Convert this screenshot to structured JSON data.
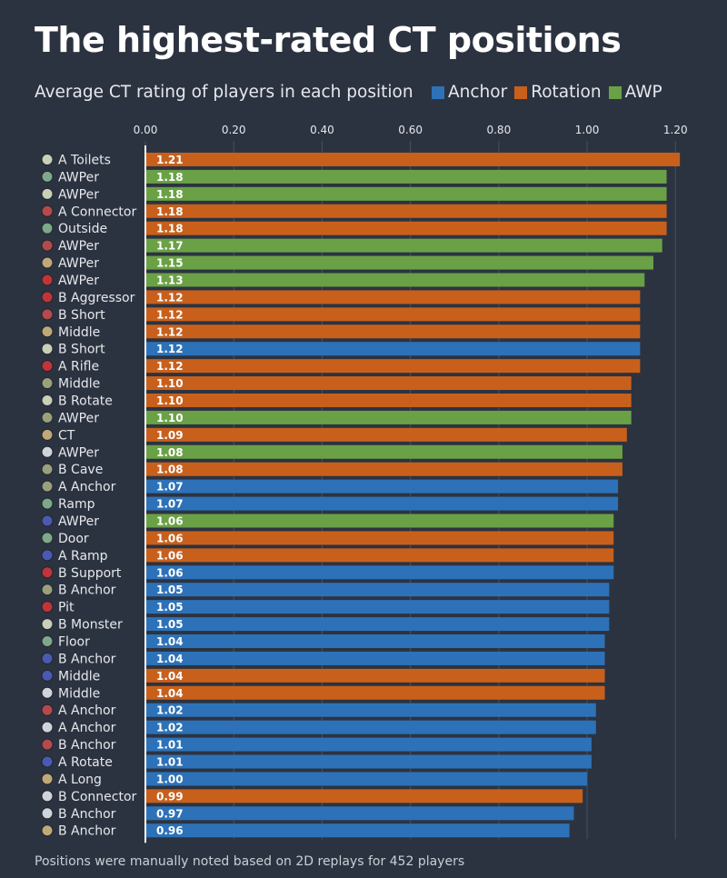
{
  "header": {
    "title": "The highest-rated CT positions",
    "subtitle": "Average CT rating of players in each position"
  },
  "legend": [
    {
      "name": "Anchor",
      "color": "#2d72b8"
    },
    {
      "name": "Rotation",
      "color": "#c8601c"
    },
    {
      "name": "AWP",
      "color": "#6aa146"
    }
  ],
  "footnote": "Positions were manually noted based on 2D replays for 452 players",
  "chart_data": {
    "type": "bar",
    "orientation": "horizontal",
    "xlim": [
      0,
      1.22
    ],
    "xticks": [
      "0.00",
      "0.20",
      "0.40",
      "0.60",
      "0.80",
      "1.00",
      "1.20"
    ],
    "xtick_values": [
      0,
      0.2,
      0.4,
      0.6,
      0.8,
      1.0,
      1.2
    ],
    "grid": true,
    "legend_position": "top-right",
    "rows": [
      {
        "label": "A Toilets",
        "value": 1.21,
        "text": "1.21",
        "series": "Rotation"
      },
      {
        "label": "AWPer",
        "value": 1.18,
        "text": "1.18",
        "series": "AWP"
      },
      {
        "label": "AWPer",
        "value": 1.18,
        "text": "1.18",
        "series": "AWP"
      },
      {
        "label": "A Connector",
        "value": 1.18,
        "text": "1.18",
        "series": "Rotation"
      },
      {
        "label": "Outside",
        "value": 1.18,
        "text": "1.18",
        "series": "Rotation"
      },
      {
        "label": "AWPer",
        "value": 1.17,
        "text": "1.17",
        "series": "AWP"
      },
      {
        "label": "AWPer",
        "value": 1.15,
        "text": "1.15",
        "series": "AWP"
      },
      {
        "label": "AWPer",
        "value": 1.13,
        "text": "1.13",
        "series": "AWP"
      },
      {
        "label": "B Aggressor",
        "value": 1.12,
        "text": "1.12",
        "series": "Rotation"
      },
      {
        "label": "B Short",
        "value": 1.12,
        "text": "1.12",
        "series": "Rotation"
      },
      {
        "label": "Middle",
        "value": 1.12,
        "text": "1.12",
        "series": "Rotation"
      },
      {
        "label": "B Short",
        "value": 1.12,
        "text": "1.12",
        "series": "Anchor"
      },
      {
        "label": "A Rifle",
        "value": 1.12,
        "text": "1.12",
        "series": "Rotation"
      },
      {
        "label": "Middle",
        "value": 1.1,
        "text": "1.10",
        "series": "Rotation"
      },
      {
        "label": "B Rotate",
        "value": 1.1,
        "text": "1.10",
        "series": "Rotation"
      },
      {
        "label": "AWPer",
        "value": 1.1,
        "text": "1.10",
        "series": "AWP"
      },
      {
        "label": "CT",
        "value": 1.09,
        "text": "1.09",
        "series": "Rotation"
      },
      {
        "label": "AWPer",
        "value": 1.08,
        "text": "1.08",
        "series": "AWP"
      },
      {
        "label": "B Cave",
        "value": 1.08,
        "text": "1.08",
        "series": "Rotation"
      },
      {
        "label": "A Anchor",
        "value": 1.07,
        "text": "1.07",
        "series": "Anchor"
      },
      {
        "label": "Ramp",
        "value": 1.07,
        "text": "1.07",
        "series": "Anchor"
      },
      {
        "label": "AWPer",
        "value": 1.06,
        "text": "1.06",
        "series": "AWP"
      },
      {
        "label": "Door",
        "value": 1.06,
        "text": "1.06",
        "series": "Rotation"
      },
      {
        "label": "A Ramp",
        "value": 1.06,
        "text": "1.06",
        "series": "Rotation"
      },
      {
        "label": "B Support",
        "value": 1.06,
        "text": "1.06",
        "series": "Anchor"
      },
      {
        "label": "B Anchor",
        "value": 1.05,
        "text": "1.05",
        "series": "Anchor"
      },
      {
        "label": "Pit",
        "value": 1.05,
        "text": "1.05",
        "series": "Anchor"
      },
      {
        "label": "B Monster",
        "value": 1.05,
        "text": "1.05",
        "series": "Anchor"
      },
      {
        "label": "Floor",
        "value": 1.04,
        "text": "1.04",
        "series": "Anchor"
      },
      {
        "label": "B Anchor",
        "value": 1.04,
        "text": "1.04",
        "series": "Anchor"
      },
      {
        "label": "Middle",
        "value": 1.04,
        "text": "1.04",
        "series": "Rotation"
      },
      {
        "label": "Middle",
        "value": 1.04,
        "text": "1.04",
        "series": "Rotation"
      },
      {
        "label": "A Anchor",
        "value": 1.02,
        "text": "1.02",
        "series": "Anchor"
      },
      {
        "label": "A Anchor",
        "value": 1.02,
        "text": "1.02",
        "series": "Anchor"
      },
      {
        "label": "B Anchor",
        "value": 1.01,
        "text": "1.01",
        "series": "Anchor"
      },
      {
        "label": "A Rotate",
        "value": 1.01,
        "text": "1.01",
        "series": "Anchor"
      },
      {
        "label": "A Long",
        "value": 1.0,
        "text": "1.00",
        "series": "Anchor"
      },
      {
        "label": "B Connector",
        "value": 0.99,
        "text": "0.99",
        "series": "Rotation"
      },
      {
        "label": "B Anchor",
        "value": 0.97,
        "text": "0.97",
        "series": "Anchor"
      },
      {
        "label": "B Anchor",
        "value": 0.96,
        "text": "0.96",
        "series": "Anchor"
      }
    ],
    "map_icons": [
      "#c9cfb8",
      "#7ea88a",
      "#c9cfb8",
      "#b54a4a",
      "#7ea88a",
      "#b54a4a",
      "#c0a878",
      "#c0343a",
      "#c0343a",
      "#b54a4a",
      "#c0a878",
      "#c9cfb8",
      "#c0343a",
      "#9aa07a",
      "#c9cfb8",
      "#9aa07a",
      "#c0a878",
      "#d0d4da",
      "#9aa07a",
      "#9aa07a",
      "#7ea88a",
      "#4a5ab0",
      "#7ea88a",
      "#4a5ab0",
      "#c0343a",
      "#9aa07a",
      "#c0343a",
      "#c9cfb8",
      "#7ea88a",
      "#4a5ab0",
      "#4a5ab0",
      "#d0d4da",
      "#b54a4a",
      "#d0d4da",
      "#b54a4a",
      "#4a5ab0",
      "#c0a878",
      "#d0d4da",
      "#d0d4da",
      "#c0a878"
    ]
  }
}
